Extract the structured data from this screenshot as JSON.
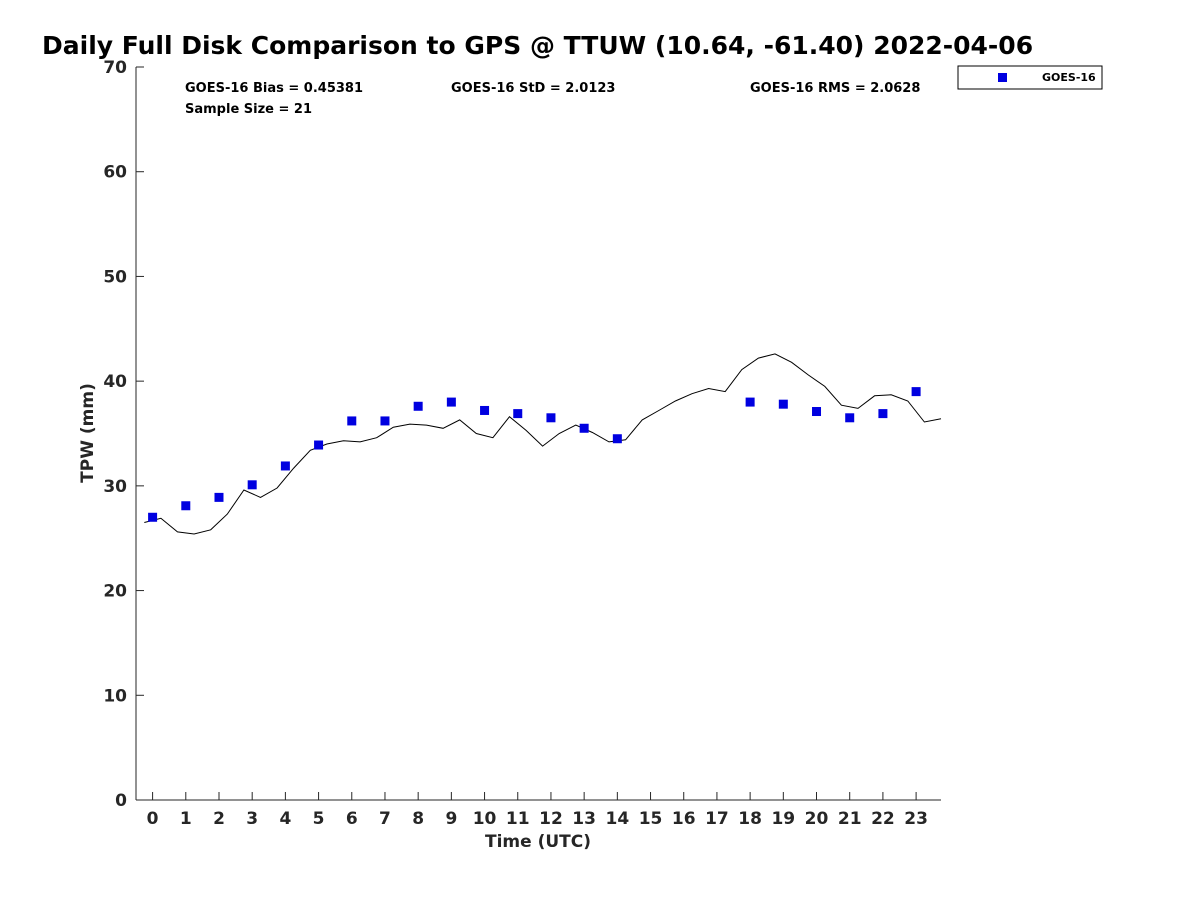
{
  "chart_data": {
    "type": "scatter",
    "title": "Daily Full Disk Comparison to GPS @ TTUW (10.64, -61.40) 2022-04-06",
    "xlabel": "Time (UTC)",
    "ylabel": "TPW (mm)",
    "xlim": [
      -0.5,
      23.75
    ],
    "ylim": [
      0,
      70
    ],
    "xticks": [
      0,
      1,
      2,
      3,
      4,
      5,
      6,
      7,
      8,
      9,
      10,
      11,
      12,
      13,
      14,
      15,
      16,
      17,
      18,
      19,
      20,
      21,
      22,
      23
    ],
    "yticks": [
      0,
      10,
      20,
      30,
      40,
      50,
      60,
      70
    ],
    "grid": false,
    "legend_position": "top-right, outside plot area",
    "stats": {
      "bias": "GOES-16 Bias = 0.45381",
      "std": "GOES-16 StD = 2.0123",
      "rms": "GOES-16 RMS = 2.0628",
      "sample": "Sample Size = 21"
    },
    "series": [
      {
        "name": "GOES-16",
        "kind": "markers",
        "marker": "square",
        "color": "#0000e0",
        "x": [
          0,
          1,
          2,
          3,
          4,
          5,
          6,
          7,
          8,
          9,
          10,
          11,
          12,
          13,
          14,
          18,
          19,
          20,
          21,
          22,
          23
        ],
        "y": [
          27.0,
          28.1,
          28.9,
          30.1,
          31.9,
          33.9,
          36.2,
          36.2,
          37.6,
          38.0,
          37.2,
          36.9,
          36.5,
          35.5,
          34.5,
          38.0,
          37.8,
          37.1,
          36.5,
          36.9,
          39.0
        ]
      },
      {
        "kind": "line",
        "color": "#000000",
        "x": [
          -0.25,
          0.25,
          0.75,
          1.25,
          1.75,
          2.25,
          2.75,
          3.25,
          3.75,
          4.25,
          4.75,
          5.25,
          5.75,
          6.25,
          6.75,
          7.25,
          7.75,
          8.25,
          8.75,
          9.25,
          9.75,
          10.25,
          10.75,
          11.25,
          11.75,
          12.25,
          12.75,
          13.25,
          13.75,
          14.25,
          14.75,
          15.25,
          15.75,
          16.25,
          16.75,
          17.25,
          17.75,
          18.25,
          18.75,
          19.25,
          19.75,
          20.25,
          20.75,
          21.25,
          21.75,
          22.25,
          22.75,
          23.25,
          23.75
        ],
        "y": [
          26.5,
          26.9,
          25.6,
          25.4,
          25.8,
          27.3,
          29.6,
          28.9,
          29.8,
          31.7,
          33.4,
          34.0,
          34.3,
          34.2,
          34.6,
          35.6,
          35.9,
          35.8,
          35.5,
          36.3,
          35.0,
          34.6,
          36.6,
          35.3,
          33.8,
          35.0,
          35.8,
          35.1,
          34.2,
          34.4,
          36.3,
          37.2,
          38.1,
          38.8,
          39.3,
          39.0,
          41.1,
          42.2,
          42.6,
          41.8,
          40.6,
          39.5,
          37.7,
          37.4,
          38.6,
          38.7,
          38.1,
          36.1,
          36.4
        ]
      }
    ]
  }
}
